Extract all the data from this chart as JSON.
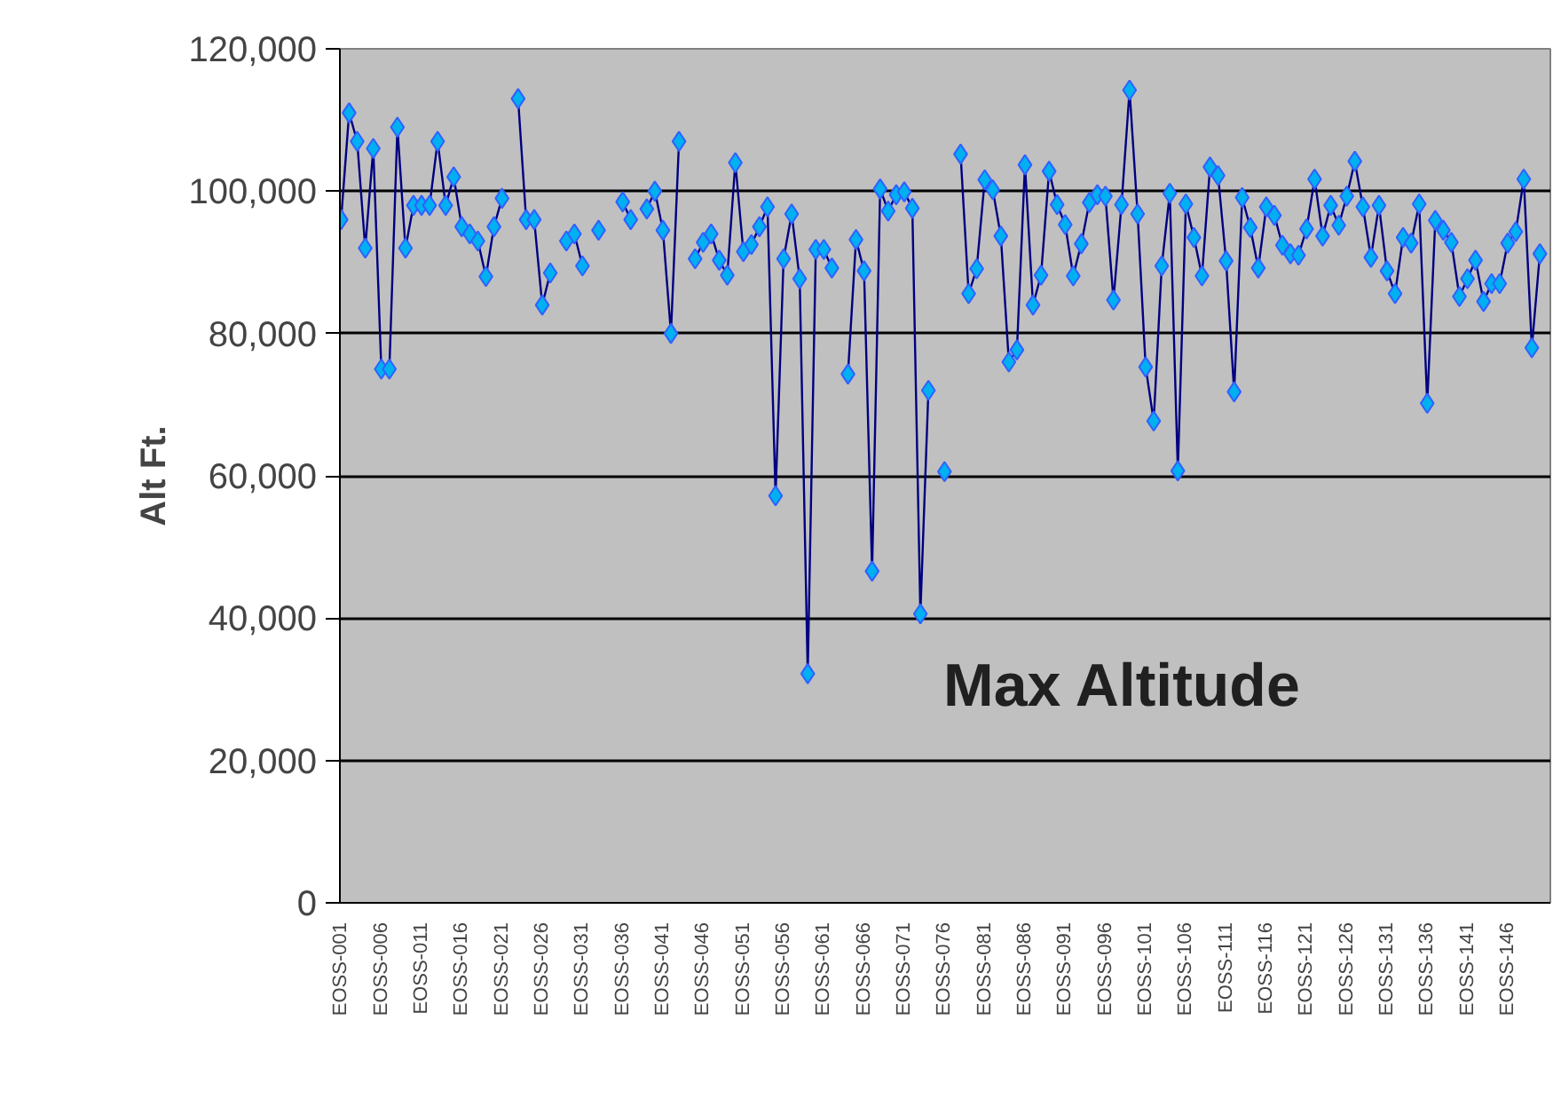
{
  "chart_data": {
    "type": "line",
    "ylabel": "Alt Ft.",
    "categories": [
      "EOSS-001",
      null,
      null,
      null,
      null,
      "EOSS-006",
      null,
      null,
      null,
      null,
      "EOSS-011",
      null,
      null,
      null,
      null,
      "EOSS-016",
      null,
      null,
      null,
      null,
      "EOSS-021",
      null,
      null,
      null,
      null,
      "EOSS-026",
      null,
      null,
      null,
      null,
      "EOSS-031",
      null,
      null,
      null,
      null,
      "EOSS-036",
      null,
      null,
      null,
      null,
      "EOSS-041",
      null,
      null,
      null,
      null,
      "EOSS-046",
      null,
      null,
      null,
      null,
      "EOSS-051",
      null,
      null,
      null,
      null,
      "EOSS-056",
      null,
      null,
      null,
      null,
      "EOSS-061",
      null,
      null,
      null,
      null,
      "EOSS-066",
      null,
      null,
      null,
      null,
      "EOSS-071",
      null,
      null,
      null,
      null,
      "EOSS-076",
      null,
      null,
      null,
      null,
      "EOSS-081",
      null,
      null,
      null,
      null,
      "EOSS-086",
      null,
      null,
      null,
      null,
      "EOSS-091",
      null,
      null,
      null,
      null,
      "EOSS-096",
      null,
      null,
      null,
      null,
      "EOSS-101",
      null,
      null,
      null,
      null,
      "EOSS-106",
      null,
      null,
      null,
      null,
      "EOSS-111",
      null,
      null,
      null,
      null,
      "EOSS-116",
      null,
      null,
      null,
      null,
      "EOSS-121",
      null,
      null,
      null,
      null,
      "EOSS-126",
      null,
      null,
      null,
      null,
      "EOSS-131",
      null,
      null,
      null,
      null,
      "EOSS-136",
      null,
      null,
      null,
      null,
      "EOSS-141",
      null,
      null,
      null,
      null,
      "EOSS-146",
      null,
      null,
      null,
      null
    ],
    "series": [
      {
        "color": "#00b0f0",
        "values": [
          96000,
          111000,
          107000,
          92000,
          106000,
          75000,
          75000,
          109000,
          92000,
          98000,
          98000,
          98000,
          107000,
          98000,
          102000,
          95000,
          94000,
          93000,
          88000,
          95000,
          99000,
          null,
          113000,
          96000,
          96000,
          84000,
          88500,
          null,
          93000,
          94000,
          89500,
          null,
          94500,
          null,
          null,
          98500,
          96000,
          null,
          97500,
          100000,
          94500,
          80000,
          107000,
          null,
          90500,
          92800,
          94000,
          90300,
          88200,
          104000,
          91500,
          92500,
          95000,
          97800,
          57200,
          90500,
          96800,
          87700,
          32200,
          91800,
          91800,
          89200,
          null,
          74300,
          93200,
          88800,
          46600,
          100300,
          97200,
          99500,
          99900,
          97600,
          40600,
          72000,
          null,
          60600,
          null,
          105200,
          85600,
          89100,
          101600,
          100200,
          93700,
          76000,
          77700,
          103700,
          84000,
          88200,
          102800,
          98100,
          95300,
          88100,
          92600,
          98400,
          99500,
          99300,
          84700,
          98100,
          114200,
          96800,
          75300,
          67700,
          89500,
          99700,
          60700,
          98200,
          93500,
          88100,
          103400,
          102200,
          90200,
          71800,
          99100,
          94900,
          89200,
          97800,
          96600,
          92400,
          91200,
          91000,
          94700,
          101700,
          93700,
          98000,
          95200,
          99300,
          104200,
          97800,
          90700,
          98000,
          88800,
          85600,
          93500,
          92700,
          98200,
          70200,
          95900,
          94500,
          92800,
          85200,
          87700,
          90300,
          84500,
          87000,
          87000,
          92700,
          94300,
          101700,
          78000,
          91200
        ]
      }
    ],
    "ylim": [
      0,
      120000
    ],
    "yticks": [
      0,
      {
        "value": 20000,
        "label": "20,000"
      },
      {
        "value": 40000,
        "label": "40,000"
      },
      {
        "value": 60000,
        "label": "60,000"
      },
      {
        "value": 80000,
        "label": "80,000"
      },
      {
        "value": 100000,
        "label": "100,000"
      },
      {
        "value": 120000,
        "label": "120,000"
      }
    ],
    "grid": "y",
    "marker": "diamond",
    "line_style": "solid",
    "annotations": [
      "Max Altitude"
    ]
  }
}
